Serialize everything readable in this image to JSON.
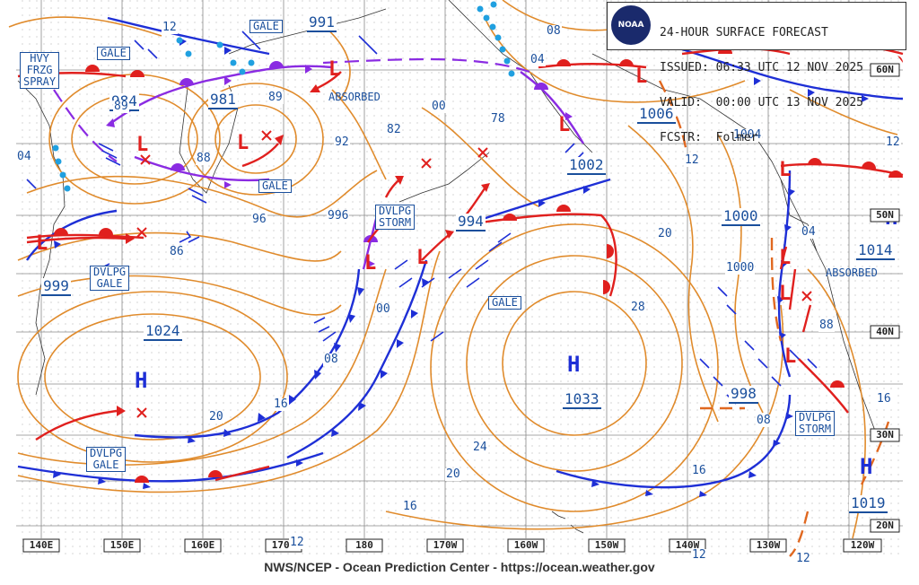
{
  "header": {
    "logo_text": "NOAA",
    "line1": "24-HOUR SURFACE FORECAST",
    "line2": "ISSUED: 06:33 UTC 12 NOV 2025",
    "line3": "VALID:  00:00 UTC 13 NOV 2025",
    "line4": "FCSTR:  Folmer"
  },
  "footer": "NWS/NCEP - Ocean Prediction Center - https://ocean.weather.gov",
  "longitudes": [
    "140E",
    "150E",
    "160E",
    "170E",
    "180",
    "170W",
    "160W",
    "150W",
    "140W",
    "130W",
    "120W"
  ],
  "latitudes": [
    "60N",
    "50N",
    "40N",
    "30N",
    "20N"
  ],
  "pressure_centers": [
    {
      "type": "L",
      "value": "984"
    },
    {
      "type": "L",
      "value": "981"
    },
    {
      "type": "L",
      "value": "999"
    },
    {
      "type": "L",
      "value": "994"
    },
    {
      "type": "L",
      "value": "991"
    },
    {
      "type": "L",
      "value": "1006"
    },
    {
      "type": "L",
      "value": "1002"
    },
    {
      "type": "L",
      "value": "1000"
    },
    {
      "type": "L",
      "value": "998"
    },
    {
      "type": "H",
      "value": "1024"
    },
    {
      "type": "H",
      "value": "1033"
    },
    {
      "type": "H",
      "value": "1014"
    },
    {
      "type": "H",
      "value": "1019"
    }
  ],
  "map_labels": [
    {
      "text": "HVY\nFRZG\nSPRAY",
      "boxed": true
    },
    {
      "text": "GALE",
      "boxed": true
    },
    {
      "text": "GALE",
      "boxed": true
    },
    {
      "text": "GALE",
      "boxed": true
    },
    {
      "text": "GALE",
      "boxed": true
    },
    {
      "text": "DVLPG\nSTORM",
      "boxed": true
    },
    {
      "text": "DVLPG\nGALE",
      "boxed": true
    },
    {
      "text": "DVLPG\nGALE",
      "boxed": true
    },
    {
      "text": "DVLPG\nSTORM",
      "boxed": true
    },
    {
      "text": "ABSORBED",
      "boxed": false
    },
    {
      "text": "ABSORBED",
      "boxed": false
    }
  ],
  "isobar_labels": [
    "12",
    "04",
    "08",
    "00",
    "04",
    "89",
    "88",
    "92",
    "96",
    "82",
    "78",
    "00",
    "86",
    "00",
    "08",
    "16",
    "20",
    "24",
    "20",
    "16",
    "28",
    "20",
    "12",
    "16",
    "1004",
    "1000",
    "04",
    "88",
    "08",
    "12",
    "16",
    "12",
    "89",
    "12",
    "04",
    "996",
    "12"
  ],
  "colors": {
    "isobar": "#e08b2c",
    "cold_front": "#1e2fd6",
    "warm_front": "#e0201e",
    "occluded": "#8a2be2",
    "grid": "#888888",
    "label": "#1a4f9c",
    "ice": "#20a0e0"
  }
}
